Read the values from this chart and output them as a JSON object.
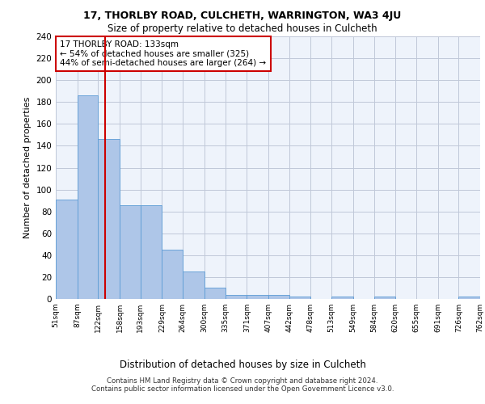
{
  "title1": "17, THORLBY ROAD, CULCHETH, WARRINGTON, WA3 4JU",
  "title2": "Size of property relative to detached houses in Culcheth",
  "xlabel": "Distribution of detached houses by size in Culcheth",
  "ylabel": "Number of detached properties",
  "footer1": "Contains HM Land Registry data © Crown copyright and database right 2024.",
  "footer2": "Contains public sector information licensed under the Open Government Licence v3.0.",
  "annotation_line1": "17 THORLBY ROAD: 133sqm",
  "annotation_line2": "← 54% of detached houses are smaller (325)",
  "annotation_line3": "44% of semi-detached houses are larger (264) →",
  "property_size": 133,
  "bin_edges": [
    51,
    87,
    122,
    158,
    193,
    229,
    264,
    300,
    335,
    371,
    407,
    442,
    478,
    513,
    549,
    584,
    620,
    655,
    691,
    726,
    762
  ],
  "bar_values": [
    91,
    186,
    146,
    86,
    86,
    45,
    25,
    10,
    4,
    4,
    4,
    2,
    0,
    2,
    0,
    2,
    0,
    0,
    0,
    2
  ],
  "bar_color": "#aec6e8",
  "bar_edge_color": "#5b9bd5",
  "vline_color": "#cc0000",
  "vline_x": 133,
  "annotation_box_color": "#cc0000",
  "bg_color": "#eef3fb",
  "grid_color": "#c0c8d8",
  "ylim": [
    0,
    240
  ],
  "yticks": [
    0,
    20,
    40,
    60,
    80,
    100,
    120,
    140,
    160,
    180,
    200,
    220,
    240
  ]
}
